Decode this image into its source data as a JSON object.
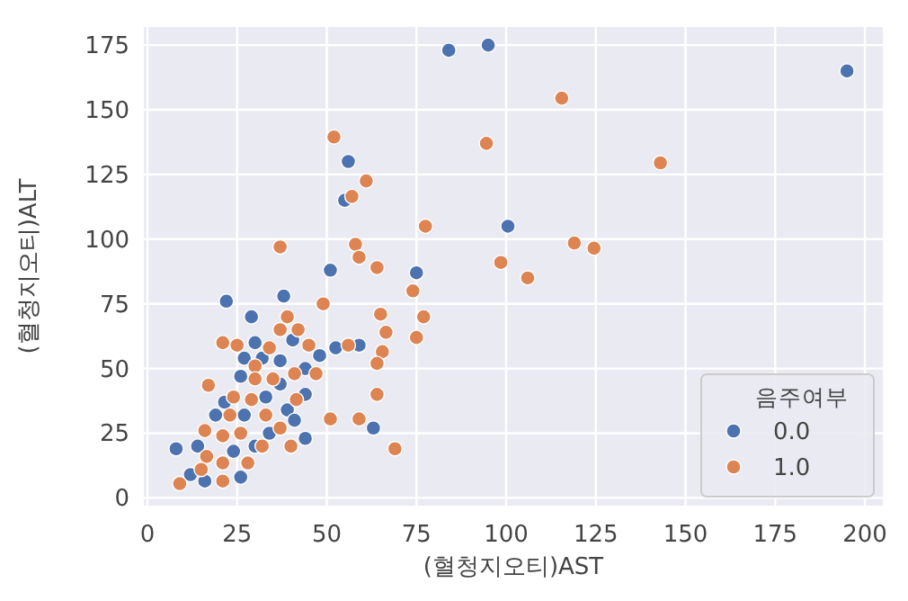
{
  "chart_data": {
    "type": "scatter",
    "xlabel": "(혈청지오티)AST",
    "ylabel": "(혈청지오티)ALT",
    "legend_title": "음주여부",
    "legend": "bottom right",
    "grid": true,
    "marker": "circle",
    "xlim": [
      -1,
      205
    ],
    "ylim": [
      -3,
      182
    ],
    "xticks": [
      0,
      25,
      50,
      75,
      100,
      125,
      150,
      175,
      200
    ],
    "yticks": [
      0,
      25,
      50,
      75,
      100,
      125,
      150,
      175
    ],
    "series": [
      {
        "name": "0.0",
        "color": "#4c72b0",
        "x": [
          84,
          95,
          56,
          55,
          100.5,
          51,
          75,
          22,
          38,
          29,
          59,
          52.5,
          48,
          63,
          8,
          26,
          195,
          30,
          40.5,
          27,
          32,
          37,
          44,
          21.5,
          33,
          39,
          44,
          19,
          27,
          41,
          44,
          30,
          24,
          12,
          16,
          34,
          37,
          26,
          14
        ],
        "values": [
          173,
          175,
          130,
          115,
          105,
          88,
          87,
          76,
          78,
          70,
          59,
          58,
          55,
          27,
          19,
          8,
          165,
          60,
          61,
          54,
          54,
          53,
          50,
          37,
          39,
          34,
          40,
          32,
          32,
          30,
          23,
          20,
          18,
          9,
          6.5,
          25,
          44,
          47,
          20
        ]
      },
      {
        "name": "1.0",
        "color": "#dd8452",
        "x": [
          52,
          94.5,
          61,
          57,
          77.5,
          37,
          58,
          59,
          64,
          98.5,
          74,
          77,
          65,
          66.5,
          75,
          65.5,
          64,
          49,
          64,
          51,
          59,
          69,
          21,
          17,
          56,
          115.5,
          143,
          119,
          124.5,
          106,
          25,
          39,
          42,
          37,
          34,
          45,
          30,
          41,
          47,
          30,
          35,
          24,
          29,
          41.5,
          23,
          37,
          16,
          21,
          26,
          40,
          16.5,
          21,
          28,
          9,
          21,
          15,
          33,
          32
        ],
        "values": [
          139.5,
          137,
          122.5,
          116.5,
          105,
          97,
          98,
          93,
          89,
          91,
          80,
          70,
          71,
          64,
          62,
          56.5,
          52,
          75,
          40,
          30.5,
          30.5,
          19,
          60,
          43.5,
          59,
          154.5,
          129.5,
          98.5,
          96.5,
          85,
          59,
          70,
          65,
          65,
          58,
          59,
          51,
          48,
          48,
          46,
          46,
          39,
          38,
          38,
          32,
          27,
          26,
          24,
          25,
          20,
          16,
          13.5,
          13.5,
          5.5,
          6.5,
          11,
          32,
          20
        ]
      }
    ]
  }
}
